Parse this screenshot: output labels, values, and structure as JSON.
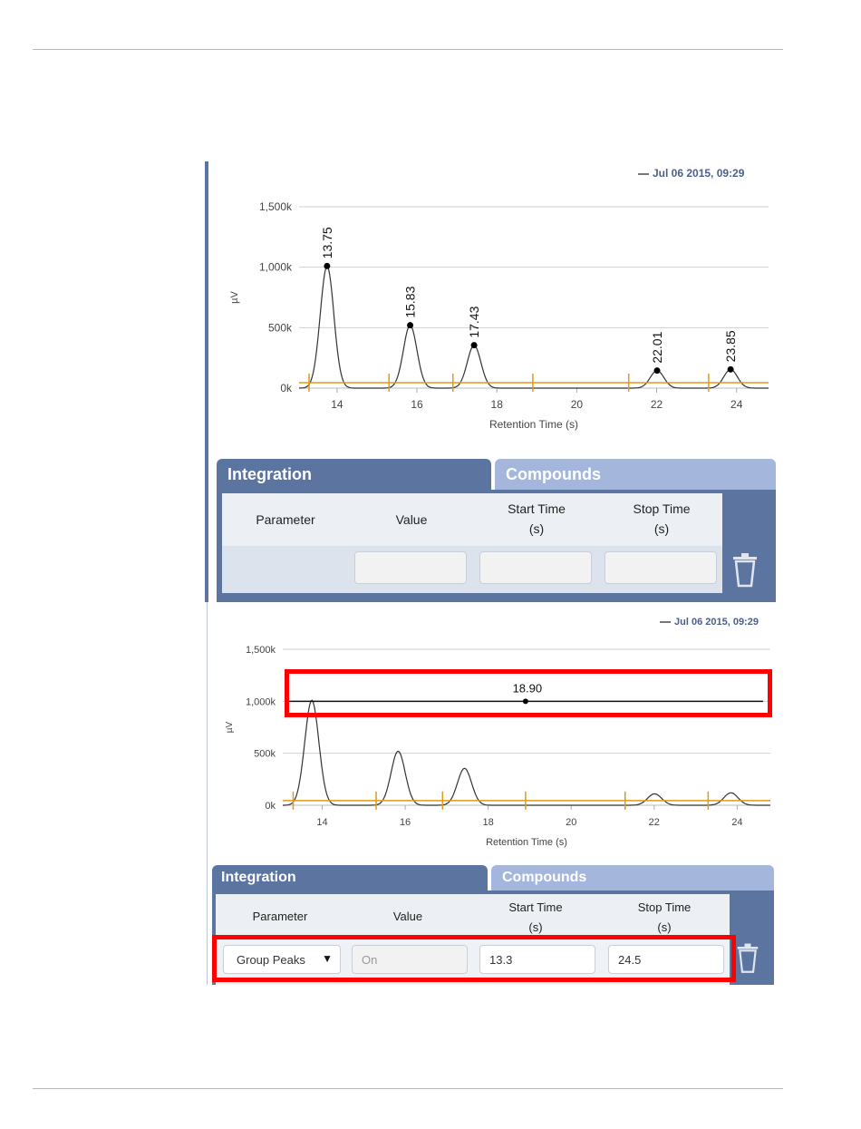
{
  "panels": [
    {
      "id": "top",
      "legend": "Jul 06 2015, 09:29",
      "chart_data": {
        "type": "line",
        "xlabel": "Retention Time (s)",
        "ylabel": "µV",
        "xlim": [
          13.05,
          24.8
        ],
        "ylim": [
          0,
          1500
        ],
        "x_ticks": [
          "14",
          "16",
          "18",
          "20",
          "22",
          "24"
        ],
        "x_tick_values": [
          14,
          16,
          18,
          20,
          22,
          24
        ],
        "y_ticks": [
          "0k",
          "500k",
          "1,000k",
          "1,500k"
        ],
        "y_tick_values": [
          0,
          500,
          1000,
          1500
        ],
        "grid": true,
        "peaks": [
          {
            "x": 13.75,
            "label": "13.75",
            "y": 1010
          },
          {
            "x": 15.83,
            "label": "15.83",
            "y": 520
          },
          {
            "x": 17.43,
            "label": "17.43",
            "y": 355
          },
          {
            "x": 22.01,
            "label": "22.01",
            "y": 145
          },
          {
            "x": 23.85,
            "label": "23.85",
            "y": 155
          }
        ],
        "baseline_y": 45,
        "event_markers_x": [
          13.3,
          15.3,
          16.9,
          18.9,
          21.3,
          23.3
        ],
        "marker_line": null
      },
      "tabs": {
        "integration": "Integration",
        "compounds": "Compounds"
      },
      "table": {
        "headers": {
          "parameter": "Parameter",
          "value": "Value",
          "start_line1": "Start Time",
          "start_line2": "(s)",
          "stop_line1": "Stop Time",
          "stop_line2": "(s)"
        },
        "row": {
          "parameter": "",
          "value": "",
          "start": "",
          "stop": ""
        }
      }
    },
    {
      "id": "bottom",
      "legend": "Jul 06 2015, 09:29",
      "chart_data": {
        "type": "line",
        "xlabel": "Retention Time (s)",
        "ylabel": "µV",
        "xlim": [
          13.05,
          24.8
        ],
        "ylim": [
          0,
          1500
        ],
        "x_ticks": [
          "14",
          "16",
          "18",
          "20",
          "22",
          "24"
        ],
        "x_tick_values": [
          14,
          16,
          18,
          20,
          22,
          24
        ],
        "y_ticks": [
          "0k",
          "500k",
          "1,000k",
          "1,500k"
        ],
        "y_tick_values": [
          0,
          500,
          1000,
          1500
        ],
        "grid": true,
        "peaks": [
          {
            "x": 13.75,
            "label": "",
            "y": 1010
          },
          {
            "x": 15.83,
            "label": "",
            "y": 520
          },
          {
            "x": 17.43,
            "label": "",
            "y": 355
          },
          {
            "x": 22.01,
            "label": "",
            "y": 110
          },
          {
            "x": 23.85,
            "label": "",
            "y": 120
          }
        ],
        "baseline_y": 45,
        "event_markers_x": [
          13.3,
          15.3,
          16.9,
          18.9,
          21.3,
          23.3
        ],
        "marker_line": {
          "y": 1000,
          "x": 18.9,
          "label": "18.90"
        }
      },
      "tabs": {
        "integration": "Integration",
        "compounds": "Compounds"
      },
      "table": {
        "headers": {
          "parameter": "Parameter",
          "value": "Value",
          "start_line1": "Start Time",
          "start_line2": "(s)",
          "stop_line1": "Stop Time",
          "stop_line2": "(s)"
        },
        "row": {
          "parameter": "Group Peaks",
          "value": "On",
          "start": "13.3",
          "stop": "24.5"
        }
      }
    }
  ],
  "colors": {
    "accent": "#5c74a0",
    "tab_inactive": "#a4b6dc",
    "event_marker": "#e09a17",
    "highlight": "#ff0000",
    "trace": "#333333"
  },
  "icons": {
    "dropdown": "triangle-down",
    "delete": "trash"
  }
}
